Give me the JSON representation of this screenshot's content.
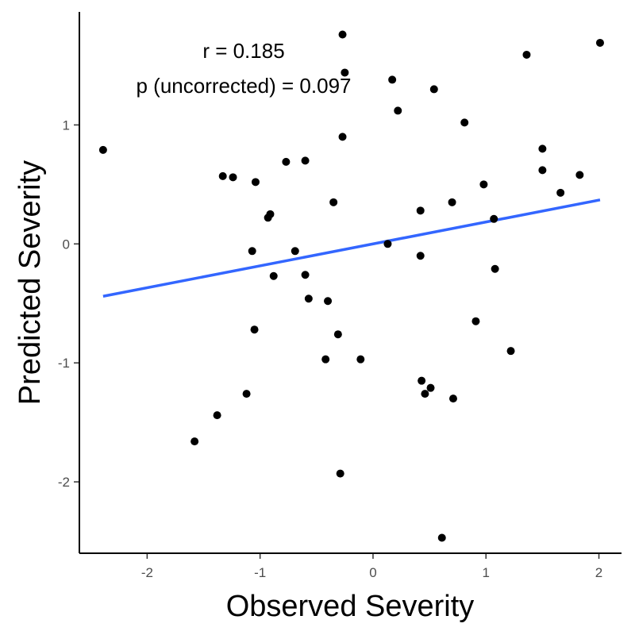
{
  "chart_data": {
    "type": "scatter",
    "xlabel": "Observed Severity",
    "ylabel": "Predicted Severity",
    "xlim": [
      -2.6,
      2.2
    ],
    "ylim": [
      -2.6,
      1.95
    ],
    "xticks": [
      -2,
      -1,
      0,
      1,
      2
    ],
    "yticks": [
      -2,
      -1,
      0,
      1
    ],
    "grid": false,
    "annotations": [
      "r = 0.185",
      "p (uncorrected) = 0.097"
    ],
    "colors": {
      "points": "#000000",
      "fit_line": "#3366ff",
      "axis": "#000000"
    },
    "points": [
      {
        "x": -2.39,
        "y": 0.79
      },
      {
        "x": -1.58,
        "y": -1.66
      },
      {
        "x": -1.38,
        "y": -1.44
      },
      {
        "x": -1.33,
        "y": 0.57
      },
      {
        "x": -1.24,
        "y": 0.56
      },
      {
        "x": -1.12,
        "y": -1.26
      },
      {
        "x": -1.07,
        "y": -0.06
      },
      {
        "x": -1.05,
        "y": -0.72
      },
      {
        "x": -1.04,
        "y": 0.52
      },
      {
        "x": -0.93,
        "y": 0.22
      },
      {
        "x": -0.91,
        "y": 0.25
      },
      {
        "x": -0.88,
        "y": -0.27
      },
      {
        "x": -0.77,
        "y": 0.69
      },
      {
        "x": -0.69,
        "y": -0.06
      },
      {
        "x": -0.6,
        "y": 0.7
      },
      {
        "x": -0.6,
        "y": -0.26
      },
      {
        "x": -0.57,
        "y": -0.46
      },
      {
        "x": -0.42,
        "y": -0.97
      },
      {
        "x": -0.4,
        "y": -0.48
      },
      {
        "x": -0.35,
        "y": 0.35
      },
      {
        "x": -0.31,
        "y": -0.76
      },
      {
        "x": -0.29,
        "y": -1.93
      },
      {
        "x": -0.27,
        "y": 1.76
      },
      {
        "x": -0.27,
        "y": 0.9
      },
      {
        "x": -0.25,
        "y": 1.44
      },
      {
        "x": -0.11,
        "y": -0.97
      },
      {
        "x": 0.13,
        "y": 0.0
      },
      {
        "x": 0.17,
        "y": 1.38
      },
      {
        "x": 0.22,
        "y": 1.12
      },
      {
        "x": 0.42,
        "y": 0.28
      },
      {
        "x": 0.42,
        "y": -0.1
      },
      {
        "x": 0.43,
        "y": -1.15
      },
      {
        "x": 0.46,
        "y": -1.26
      },
      {
        "x": 0.51,
        "y": -1.21
      },
      {
        "x": 0.54,
        "y": 1.3
      },
      {
        "x": 0.61,
        "y": -2.47
      },
      {
        "x": 0.7,
        "y": 0.35
      },
      {
        "x": 0.71,
        "y": -1.3
      },
      {
        "x": 0.81,
        "y": 1.02
      },
      {
        "x": 0.91,
        "y": -0.65
      },
      {
        "x": 0.98,
        "y": 0.5
      },
      {
        "x": 1.07,
        "y": 0.21
      },
      {
        "x": 1.08,
        "y": -0.21
      },
      {
        "x": 1.22,
        "y": -0.9
      },
      {
        "x": 1.36,
        "y": 1.59
      },
      {
        "x": 1.5,
        "y": 0.8
      },
      {
        "x": 1.5,
        "y": 0.62
      },
      {
        "x": 1.66,
        "y": 0.43
      },
      {
        "x": 1.83,
        "y": 0.58
      },
      {
        "x": 2.01,
        "y": 1.69
      }
    ],
    "fit_line": {
      "x": [
        -2.39,
        2.01
      ],
      "y": [
        -0.44,
        0.37
      ]
    }
  }
}
